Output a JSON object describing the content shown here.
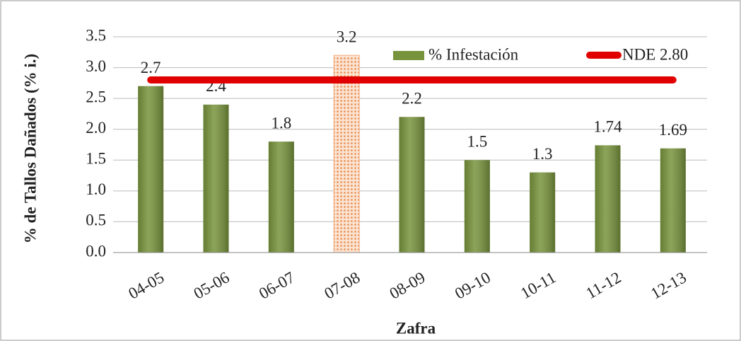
{
  "chart_data": {
    "type": "bar",
    "y_label": "% de Tallos Dañados (% i.)",
    "x_label": "Zafra",
    "categories": [
      "04-05",
      "05-06",
      "06-07",
      "07-08",
      "08-09",
      "09-10",
      "10-11",
      "11-12",
      "12-13"
    ],
    "series": [
      {
        "name": "% Infestación",
        "color": "#77933c",
        "type": "bar",
        "values": [
          2.7,
          2.4,
          1.8,
          3.2,
          2.2,
          1.5,
          1.3,
          1.74,
          1.69
        ],
        "bar_colors": [
          "#77933c",
          "#77933c",
          "#77933c",
          "#f4b183",
          "#77933c",
          "#77933c",
          "#77933c",
          "#77933c",
          "#77933c"
        ]
      },
      {
        "name": "NDE 2.80",
        "color": "#e00000",
        "type": "line",
        "values": [
          2.8,
          2.8,
          2.8,
          2.8,
          2.8,
          2.8,
          2.8,
          2.8,
          2.8
        ]
      }
    ],
    "ylim": [
      0,
      3.5
    ],
    "yticks": [
      {
        "value": 0,
        "label": "0.0"
      },
      0.5,
      {
        "value": 1,
        "label": "1.0"
      },
      1.5,
      {
        "value": 2,
        "label": "2.0"
      },
      2.5,
      {
        "value": 3,
        "label": "3.0"
      },
      3.5
    ],
    "grid": true
  }
}
